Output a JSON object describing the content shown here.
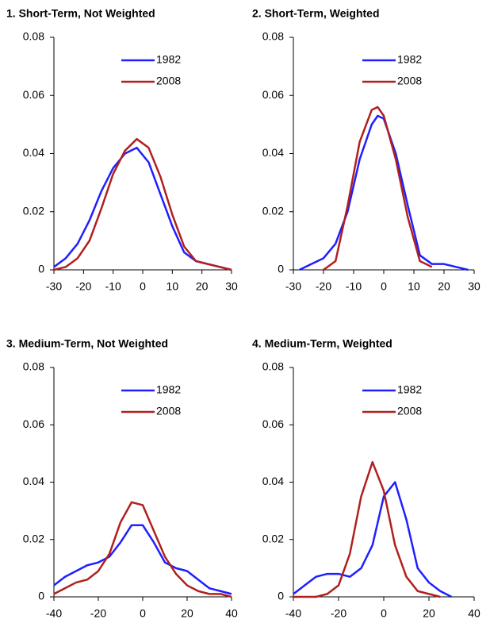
{
  "chart_data": [
    {
      "type": "line",
      "title": "1. Short-Term, Not Weighted",
      "x": [
        -30,
        -26,
        -22,
        -18,
        -14,
        -10,
        -6,
        -2,
        2,
        6,
        10,
        14,
        18,
        22,
        26,
        30
      ],
      "series": [
        {
          "name": "1982",
          "color": "#1f1fff",
          "values": [
            0.001,
            0.004,
            0.009,
            0.017,
            0.027,
            0.035,
            0.04,
            0.042,
            0.037,
            0.026,
            0.015,
            0.006,
            0.003,
            0.002,
            0.001,
            0
          ]
        },
        {
          "name": "2008",
          "color": "#b0201e",
          "values": [
            0,
            0.001,
            0.004,
            0.01,
            0.021,
            0.033,
            0.041,
            0.045,
            0.042,
            0.032,
            0.019,
            0.008,
            0.003,
            0.002,
            0.001,
            0
          ]
        }
      ],
      "xlim": [
        -30,
        30
      ],
      "xticks": [
        -30,
        -20,
        -10,
        0,
        10,
        20,
        30
      ],
      "ylim": [
        0,
        0.08
      ],
      "yticks": [
        0,
        0.02,
        0.04,
        0.06,
        0.08
      ],
      "legend": "top"
    },
    {
      "type": "line",
      "title": "2. Short-Term, Weighted",
      "x": [
        -28,
        -24,
        -20,
        -16,
        -12,
        -8,
        -4,
        -2,
        0,
        4,
        8,
        12,
        16,
        20,
        24,
        28
      ],
      "series": [
        {
          "name": "1982",
          "color": "#1f1fff",
          "values": [
            0,
            0.002,
            0.004,
            0.009,
            0.02,
            0.038,
            0.05,
            0.053,
            0.052,
            0.04,
            0.022,
            0.005,
            0.002,
            0.002,
            0.001,
            0
          ]
        },
        {
          "name": "2008",
          "color": "#b0201e",
          "values": [
            null,
            null,
            0,
            0.003,
            0.022,
            0.044,
            0.055,
            0.056,
            0.053,
            0.038,
            0.018,
            0.003,
            0.001,
            null,
            null,
            null
          ]
        }
      ],
      "xlim": [
        -30,
        30
      ],
      "xticks": [
        -30,
        -20,
        -10,
        0,
        10,
        20,
        30
      ],
      "ylim": [
        0,
        0.08
      ],
      "yticks": [
        0,
        0.02,
        0.04,
        0.06,
        0.08
      ],
      "legend": "top"
    },
    {
      "type": "line",
      "title": "3. Medium-Term, Not Weighted",
      "x": [
        -40,
        -35,
        -30,
        -25,
        -20,
        -15,
        -10,
        -5,
        0,
        5,
        10,
        15,
        20,
        25,
        30,
        35,
        40
      ],
      "series": [
        {
          "name": "1982",
          "color": "#1f1fff",
          "values": [
            0.004,
            0.007,
            0.009,
            0.011,
            0.012,
            0.014,
            0.019,
            0.025,
            0.025,
            0.019,
            0.012,
            0.01,
            0.009,
            0.006,
            0.003,
            0.002,
            0.001
          ]
        },
        {
          "name": "2008",
          "color": "#b0201e",
          "values": [
            0.001,
            0.003,
            0.005,
            0.006,
            0.009,
            0.015,
            0.026,
            0.033,
            0.032,
            0.023,
            0.014,
            0.008,
            0.004,
            0.002,
            0.001,
            0.001,
            0
          ]
        }
      ],
      "xlim": [
        -40,
        40
      ],
      "xticks": [
        -40,
        -20,
        0,
        20,
        40
      ],
      "ylim": [
        0,
        0.08
      ],
      "yticks": [
        0,
        0.02,
        0.04,
        0.06,
        0.08
      ],
      "legend": "top"
    },
    {
      "type": "line",
      "title": "4. Medium-Term, Weighted",
      "x": [
        -40,
        -35,
        -30,
        -25,
        -20,
        -15,
        -10,
        -5,
        0,
        5,
        10,
        15,
        20,
        25,
        30,
        35,
        40
      ],
      "series": [
        {
          "name": "1982",
          "color": "#1f1fff",
          "values": [
            0.001,
            0.004,
            0.007,
            0.008,
            0.008,
            0.007,
            0.01,
            0.018,
            0.035,
            0.04,
            0.027,
            0.01,
            0.005,
            0.002,
            0,
            null,
            null
          ]
        },
        {
          "name": "2008",
          "color": "#b0201e",
          "values": [
            0,
            0,
            0,
            0.001,
            0.004,
            0.015,
            0.035,
            0.047,
            0.037,
            0.018,
            0.007,
            0.002,
            0.001,
            0,
            null,
            null,
            null
          ]
        }
      ],
      "xlim": [
        -40,
        40
      ],
      "xticks": [
        -40,
        -20,
        0,
        20,
        40
      ],
      "ylim": [
        0,
        0.08
      ],
      "yticks": [
        0,
        0.02,
        0.04,
        0.06,
        0.08
      ],
      "legend": "top"
    }
  ]
}
